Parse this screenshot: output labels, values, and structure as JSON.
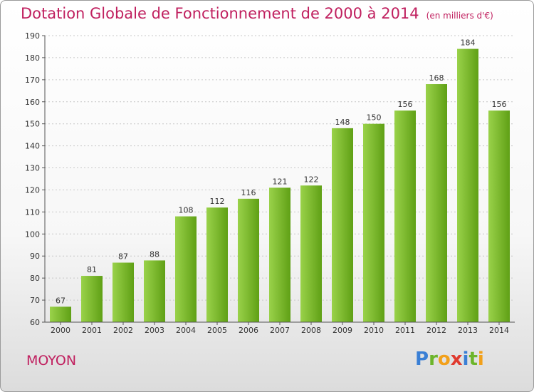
{
  "title": "Dotation Globale de Fonctionnement de 2000 à 2014",
  "unit_note": "(en milliers d'€)",
  "commune": "MOYON",
  "brand": {
    "text": "Proxiti",
    "letters": [
      {
        "ch": "P",
        "color": "#3a7fd5"
      },
      {
        "ch": "r",
        "color": "#6cb52a"
      },
      {
        "ch": "o",
        "color": "#f2a01a"
      },
      {
        "ch": "x",
        "color": "#e03a2f"
      },
      {
        "ch": "i",
        "color": "#3a7fd5"
      },
      {
        "ch": "t",
        "color": "#6cb52a"
      },
      {
        "ch": "i",
        "color": "#f2a01a"
      }
    ]
  },
  "colors": {
    "bar_light": "#9ad24a",
    "bar_dark": "#5fa015",
    "title": "#c0205f"
  },
  "chart_data": {
    "type": "bar",
    "title": "Dotation Globale de Fonctionnement de 2000 à 2014",
    "categories": [
      "2000",
      "2001",
      "2002",
      "2003",
      "2004",
      "2005",
      "2006",
      "2007",
      "2008",
      "2009",
      "2010",
      "2011",
      "2012",
      "2013",
      "2014"
    ],
    "values": [
      67,
      81,
      87,
      88,
      108,
      112,
      116,
      121,
      122,
      148,
      150,
      156,
      168,
      184,
      156
    ],
    "ylim": [
      60,
      190
    ],
    "yticks": [
      60,
      70,
      80,
      90,
      100,
      110,
      120,
      130,
      140,
      150,
      160,
      170,
      180,
      190
    ],
    "grid": true,
    "xlabel": "",
    "ylabel": ""
  }
}
